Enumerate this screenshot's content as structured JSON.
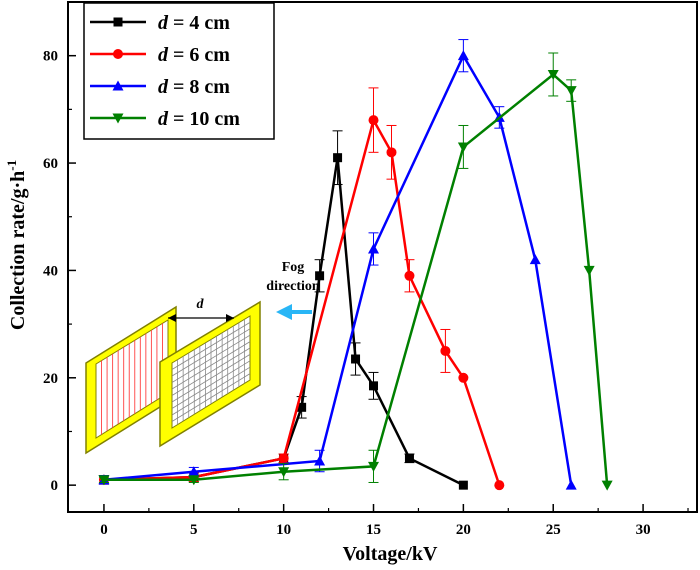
{
  "chart_data": {
    "type": "line",
    "xlabel": "Voltage/kV",
    "ylabel": "Collection rate/g·h",
    "ylabel_sup": "-1",
    "xlim": [
      -2,
      33
    ],
    "ylim": [
      -5,
      90
    ],
    "xticks": [
      0,
      5,
      10,
      15,
      20,
      25,
      30
    ],
    "yticks": [
      0,
      20,
      40,
      60,
      80
    ],
    "grid": false,
    "legend": "top-left",
    "series": [
      {
        "name_var": "d",
        "name_rest": " = 4 cm",
        "color": "#000000",
        "marker": "square",
        "x": [
          0,
          5,
          10,
          11,
          12,
          13,
          14,
          15,
          17,
          20
        ],
        "y": [
          1,
          1.5,
          5,
          14.5,
          39,
          61,
          23.5,
          18.5,
          5,
          0
        ],
        "err": [
          0.8,
          0.8,
          0.8,
          2,
          3,
          5,
          3,
          2.5,
          0.8,
          0
        ]
      },
      {
        "name_var": "d",
        "name_rest": " = 6 cm",
        "color": "#ff0000",
        "marker": "circle",
        "x": [
          0,
          5,
          10,
          15,
          16,
          17,
          19,
          20,
          22
        ],
        "y": [
          1,
          1.5,
          5,
          68,
          62,
          39,
          25,
          20,
          0
        ],
        "err": [
          0.8,
          0.8,
          0.8,
          6,
          5,
          3,
          4,
          0,
          0
        ]
      },
      {
        "name_var": "d",
        "name_rest": " = 8 cm",
        "color": "#0000ff",
        "marker": "triangle-up",
        "x": [
          0,
          5,
          12,
          15,
          20,
          22,
          24,
          26
        ],
        "y": [
          1,
          2.5,
          4.5,
          44,
          80,
          68.5,
          42,
          0
        ],
        "err": [
          0.8,
          0.8,
          2,
          3,
          3,
          2,
          0,
          0
        ]
      },
      {
        "name_var": "d",
        "name_rest": " = 10 cm",
        "color": "#008000",
        "marker": "triangle-down",
        "x": [
          0,
          5,
          10,
          15,
          20,
          25,
          26,
          27,
          28
        ],
        "y": [
          1,
          1,
          2.5,
          3.5,
          63,
          76.5,
          73.5,
          40,
          0
        ],
        "err": [
          0.5,
          0.5,
          1.5,
          3,
          4,
          4,
          2,
          0,
          0
        ]
      }
    ],
    "annotations": {
      "fog_line1": "Fog",
      "fog_line2": "direction",
      "gap_label": "d"
    },
    "colors": {
      "frame": "#ffff00",
      "frame_border": "#808000",
      "arrow": "#29b6f6",
      "left_grid": "#ff4040",
      "right_grid": "#888888"
    }
  }
}
